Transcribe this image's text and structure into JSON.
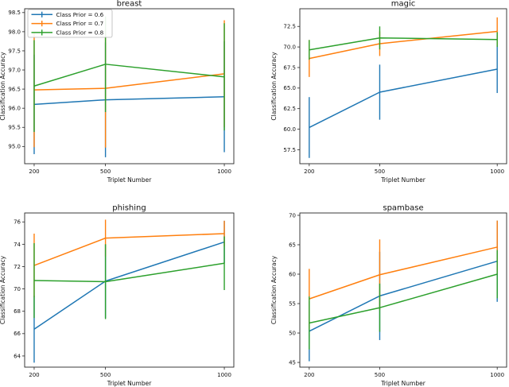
{
  "figure": {
    "background": "#ffffff",
    "text_color": "#111111",
    "spine_color": "#262626"
  },
  "legend": {
    "position": "upper left",
    "labels": [
      "Class Prior = 0.6",
      "Class Prior = 0.7",
      "Class Prior = 0.8"
    ],
    "colors": [
      "#1f77b4",
      "#ff7f0e",
      "#2ca02c"
    ]
  },
  "chart_data": [
    {
      "type": "line",
      "error_bars": true,
      "title": "breast",
      "xlabel": "Triplet Number",
      "ylabel": "Classification Accuracy",
      "x": [
        200,
        500,
        1000
      ],
      "xticks": [
        "200",
        "500",
        "1000"
      ],
      "yticks": [
        "95.0",
        "95.5",
        "96.0",
        "96.5",
        "97.0",
        "97.5",
        "98.0",
        "98.5"
      ],
      "xlim": [
        160,
        1040
      ],
      "ylim": [
        94.55,
        98.6
      ],
      "grid": false,
      "legend_visible": true,
      "series": [
        {
          "name": "Class Prior = 0.6",
          "color": "#1f77b4",
          "values": [
            96.1,
            96.22,
            96.3
          ],
          "yerr": [
            1.3,
            1.5,
            1.45
          ]
        },
        {
          "name": "Class Prior = 0.7",
          "color": "#ff7f0e",
          "values": [
            96.48,
            96.52,
            96.9
          ],
          "yerr": [
            1.5,
            1.55,
            1.4
          ]
        },
        {
          "name": "Class Prior = 0.8",
          "color": "#2ca02c",
          "values": [
            96.58,
            97.15,
            96.82
          ],
          "yerr": [
            1.2,
            1.25,
            1.4
          ]
        }
      ]
    },
    {
      "type": "line",
      "error_bars": true,
      "title": "magic",
      "xlabel": "Triplet Number",
      "ylabel": "Classification Accuracy",
      "x": [
        200,
        500,
        1000
      ],
      "xticks": [
        "200",
        "500",
        "1000"
      ],
      "yticks": [
        "57.5",
        "60.0",
        "62.5",
        "65.0",
        "67.5",
        "70.0",
        "72.5"
      ],
      "xlim": [
        160,
        1040
      ],
      "ylim": [
        55.8,
        74.65
      ],
      "grid": false,
      "legend_visible": false,
      "series": [
        {
          "name": "Class Prior = 0.6",
          "color": "#1f77b4",
          "values": [
            60.2,
            64.5,
            67.3
          ],
          "yerr": [
            3.7,
            3.35,
            2.9
          ]
        },
        {
          "name": "Class Prior = 0.7",
          "color": "#ff7f0e",
          "values": [
            68.6,
            70.4,
            71.9
          ],
          "yerr": [
            2.25,
            1.5,
            1.7
          ]
        },
        {
          "name": "Class Prior = 0.8",
          "color": "#2ca02c",
          "values": [
            69.65,
            71.1,
            70.9
          ],
          "yerr": [
            1.2,
            1.4,
            0.9
          ]
        }
      ]
    },
    {
      "type": "line",
      "error_bars": true,
      "title": "phishing",
      "xlabel": "Triplet Number",
      "ylabel": "Classification Accuracy",
      "x": [
        200,
        500,
        1000
      ],
      "xticks": [
        "200",
        "500",
        "1000"
      ],
      "yticks": [
        "64",
        "66",
        "68",
        "70",
        "72",
        "74",
        "76"
      ],
      "xlim": [
        160,
        1040
      ],
      "ylim": [
        63.0,
        76.8
      ],
      "grid": false,
      "legend_visible": false,
      "series": [
        {
          "name": "Class Prior = 0.6",
          "color": "#1f77b4",
          "values": [
            66.4,
            70.7,
            74.2
          ],
          "yerr": [
            3.0,
            3.3,
            1.9
          ]
        },
        {
          "name": "Class Prior = 0.7",
          "color": "#ff7f0e",
          "values": [
            72.1,
            74.55,
            74.95
          ],
          "yerr": [
            2.85,
            1.65,
            1.15
          ]
        },
        {
          "name": "Class Prior = 0.8",
          "color": "#2ca02c",
          "values": [
            70.75,
            70.65,
            72.3
          ],
          "yerr": [
            3.35,
            3.35,
            2.4
          ]
        }
      ]
    },
    {
      "type": "line",
      "error_bars": true,
      "title": "spambase",
      "xlabel": "Triplet Number",
      "ylabel": "Classification Accuracy",
      "x": [
        200,
        500,
        1000
      ],
      "xticks": [
        "200",
        "500",
        "1000"
      ],
      "yticks": [
        "45",
        "50",
        "55",
        "60",
        "65",
        "70"
      ],
      "xlim": [
        160,
        1040
      ],
      "ylim": [
        44.2,
        70.4
      ],
      "grid": false,
      "legend_visible": false,
      "series": [
        {
          "name": "Class Prior = 0.6",
          "color": "#1f77b4",
          "values": [
            50.3,
            56.3,
            62.2
          ],
          "yerr": [
            5.1,
            7.5,
            6.9
          ]
        },
        {
          "name": "Class Prior = 0.7",
          "color": "#ff7f0e",
          "values": [
            55.8,
            59.9,
            64.6
          ],
          "yerr": [
            5.1,
            6.0,
            4.5
          ]
        },
        {
          "name": "Class Prior = 0.8",
          "color": "#2ca02c",
          "values": [
            51.7,
            54.3,
            60.0
          ],
          "yerr": [
            4.5,
            4.1,
            4.1
          ]
        }
      ]
    }
  ]
}
